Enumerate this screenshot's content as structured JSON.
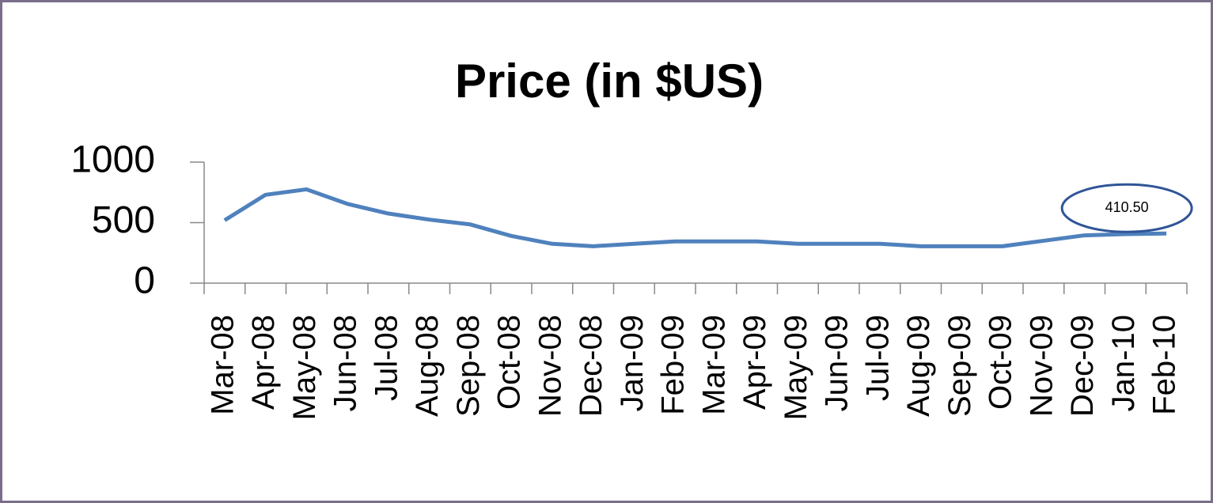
{
  "chart_data": {
    "type": "line",
    "title": "Price (in $US)",
    "categories": [
      "Mar-08",
      "Apr-08",
      "May-08",
      "Jun-08",
      "Jul-08",
      "Aug-08",
      "Sep-08",
      "Oct-08",
      "Nov-08",
      "Dec-08",
      "Jan-09",
      "Feb-09",
      "Mar-09",
      "Apr-09",
      "May-09",
      "Jun-09",
      "Jul-09",
      "Aug-09",
      "Sep-09",
      "Oct-09",
      "Nov-09",
      "Dec-09",
      "Jan-10",
      "Feb-10"
    ],
    "series": [
      {
        "name": "Price",
        "color": "#4f81bd",
        "values": [
          520,
          730,
          775,
          655,
          575,
          525,
          485,
          390,
          325,
          305,
          325,
          345,
          345,
          345,
          325,
          325,
          325,
          305,
          305,
          305,
          350,
          395,
          405,
          410.5
        ],
        "value_labels": [
          null,
          null,
          null,
          null,
          null,
          null,
          null,
          null,
          null,
          null,
          null,
          null,
          null,
          null,
          null,
          null,
          null,
          null,
          null,
          null,
          null,
          null,
          null,
          "410.50"
        ]
      }
    ],
    "ylim": [
      0,
      1000
    ],
    "yticks": [
      0,
      500,
      1000
    ],
    "grid": false
  }
}
